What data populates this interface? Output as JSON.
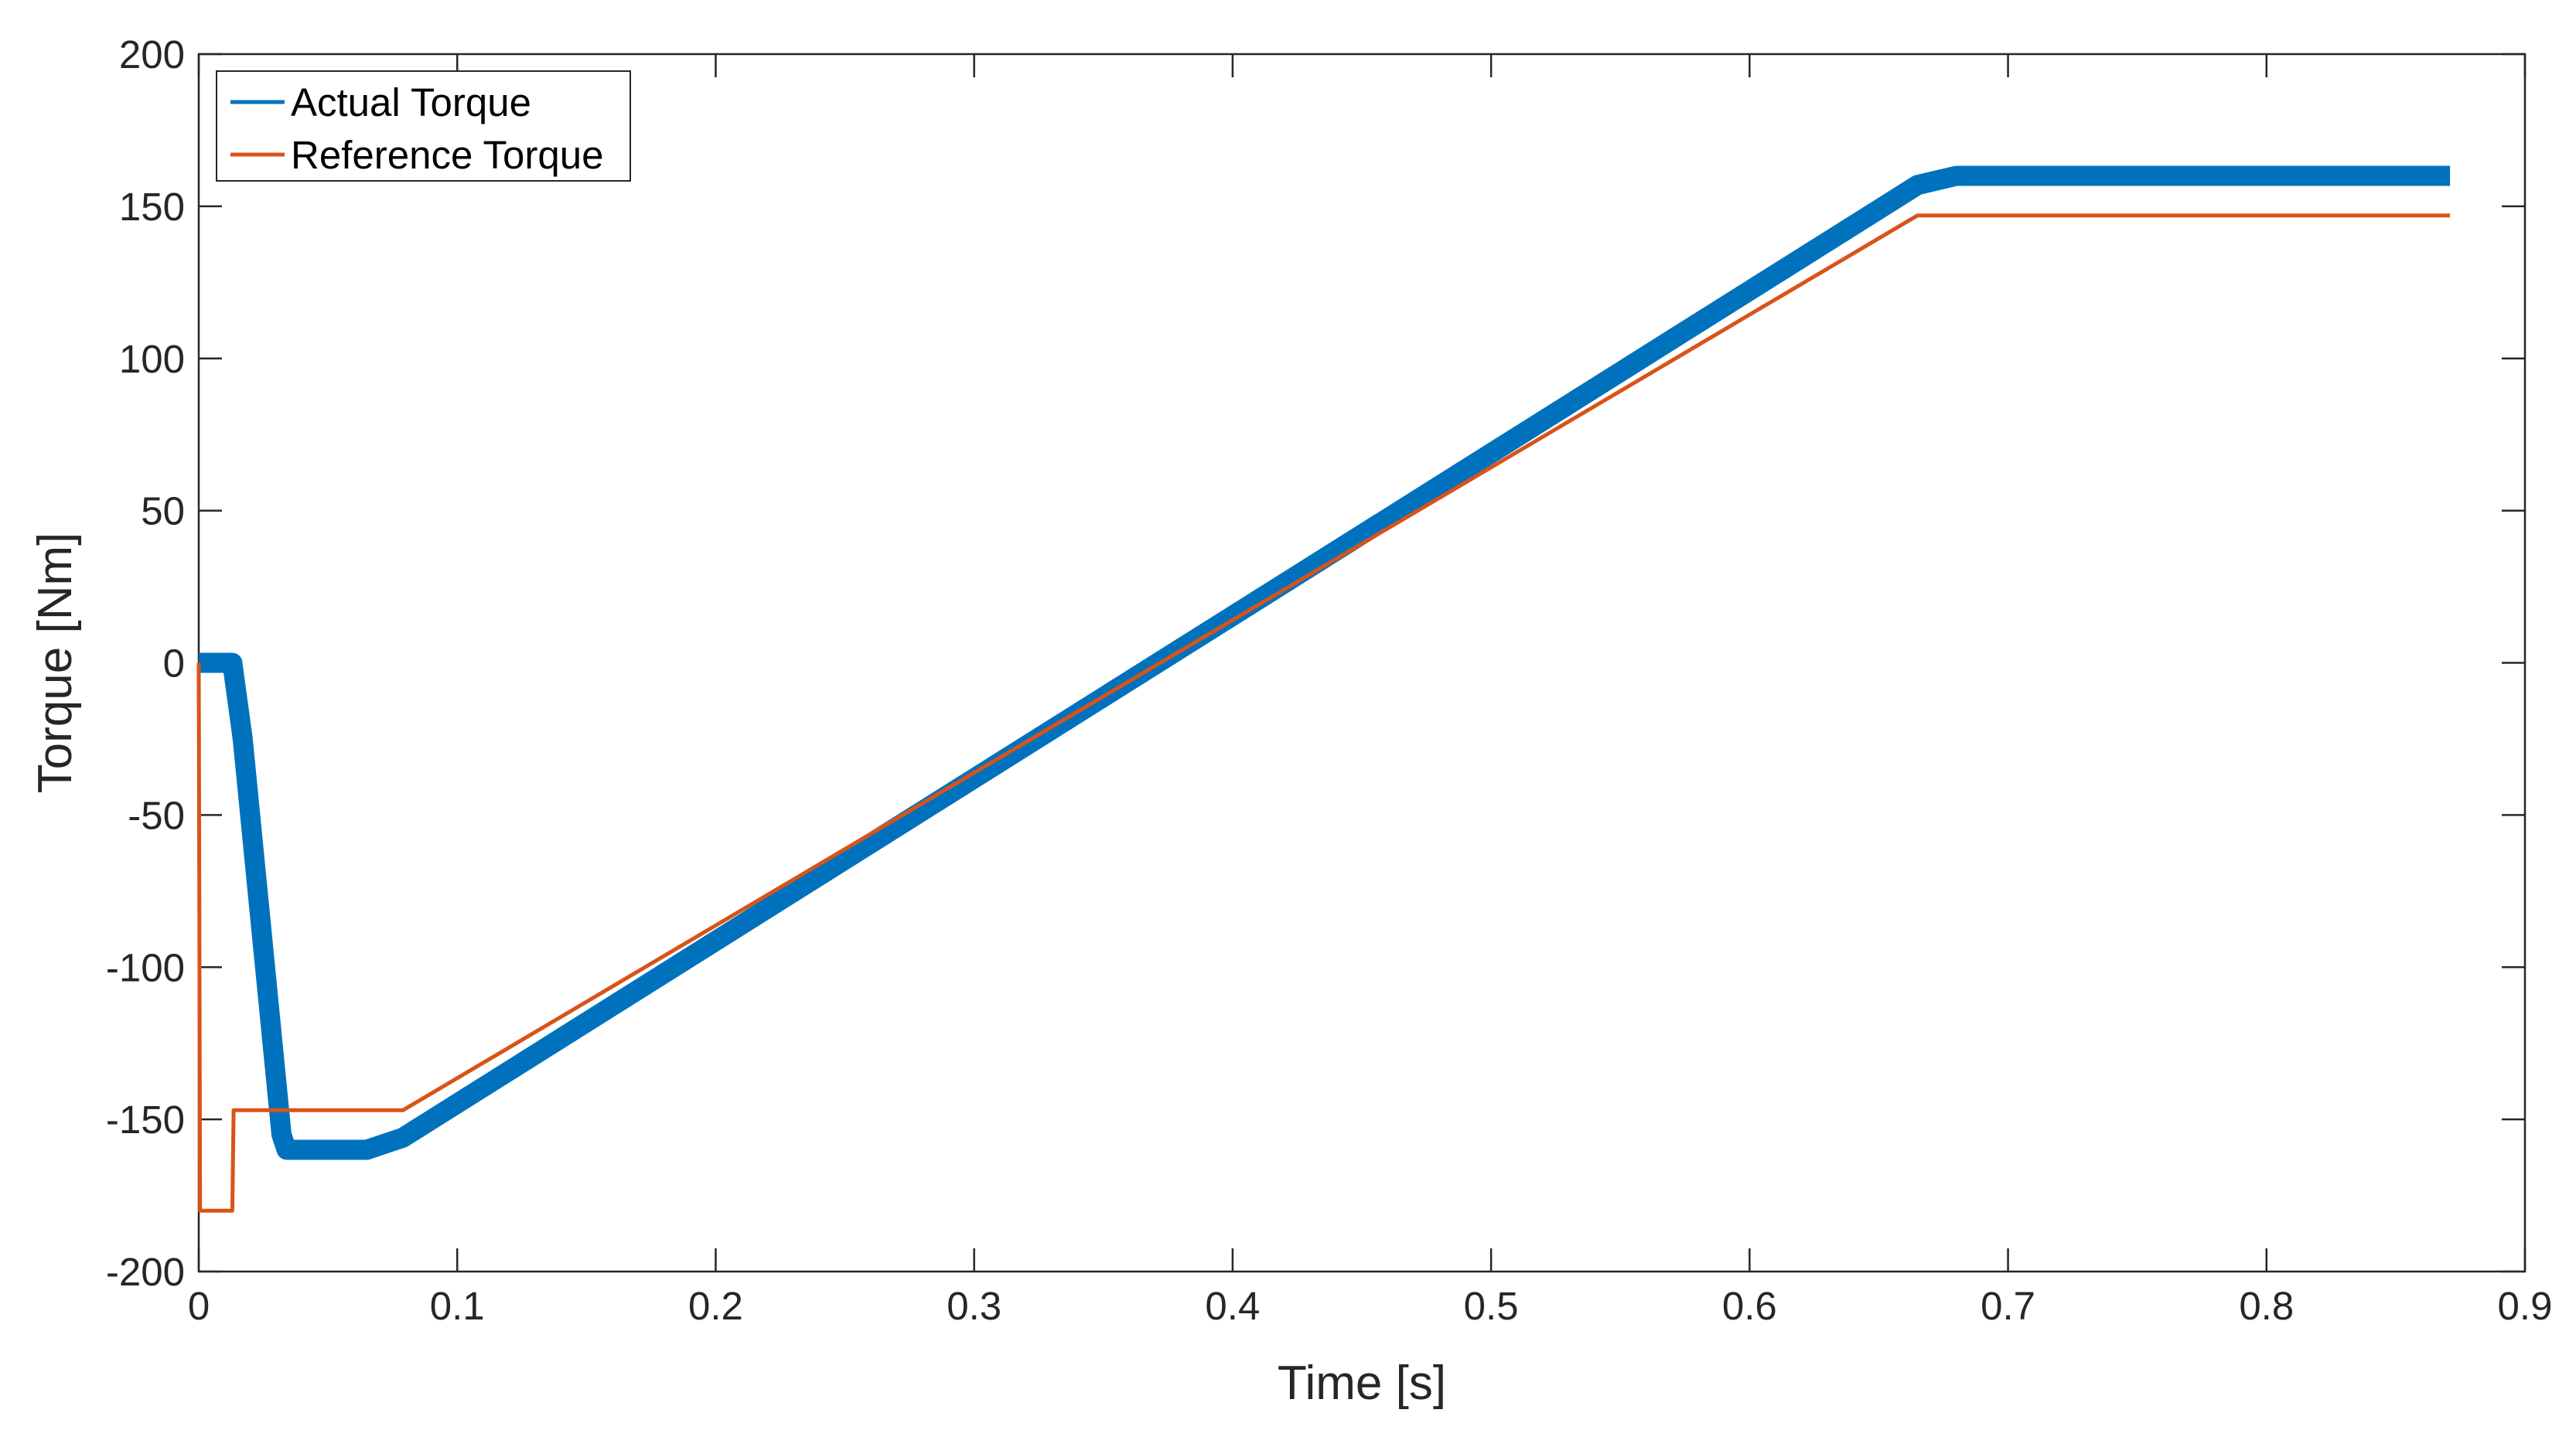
{
  "chart_data": {
    "type": "line",
    "title": "",
    "xlabel": "Time [s]",
    "ylabel": "Torque [Nm]",
    "xlim": [
      0,
      0.9
    ],
    "ylim": [
      -200,
      200
    ],
    "xticks": [
      0,
      0.1,
      0.2,
      0.3,
      0.4,
      0.5,
      0.6,
      0.7,
      0.8,
      0.9
    ],
    "xtick_labels": [
      "0",
      "0.1",
      "0.2",
      "0.3",
      "0.4",
      "0.5",
      "0.6",
      "0.7",
      "0.8",
      "0.9"
    ],
    "yticks": [
      -200,
      -150,
      -100,
      -50,
      0,
      50,
      100,
      150,
      200
    ],
    "ytick_labels": [
      "-200",
      "-150",
      "-100",
      "-50",
      "0",
      "50",
      "100",
      "150",
      "200"
    ],
    "grid": false,
    "box": true,
    "legend_position": "top-left",
    "series": [
      {
        "name": "Actual Torque",
        "color": "#0072BD",
        "ripple": "thick band (high-frequency ripple of about ±3 Nm)",
        "x": [
          0,
          0.013,
          0.017,
          0.032,
          0.034,
          0.065,
          0.079,
          0.665,
          0.68,
          0.871
        ],
        "y": [
          0,
          0,
          -25,
          -155,
          -160,
          -160,
          -156,
          157,
          160,
          160
        ]
      },
      {
        "name": "Reference Torque",
        "color": "#D95319",
        "x": [
          0,
          0.0005,
          0.013,
          0.0135,
          0.079,
          0.665,
          0.871
        ],
        "y": [
          0,
          -180,
          -180,
          -147,
          -147,
          147,
          147
        ]
      }
    ]
  }
}
